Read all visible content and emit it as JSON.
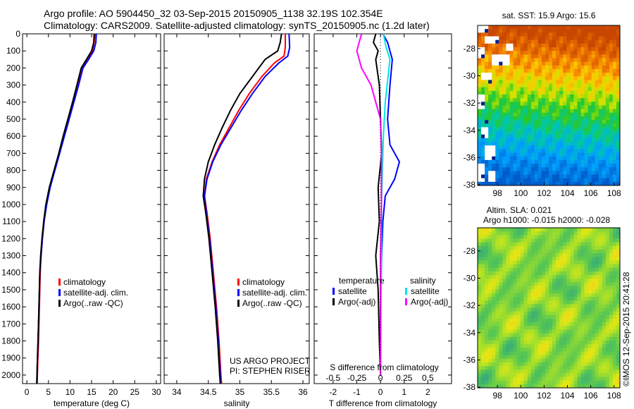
{
  "titles": {
    "line1": "Argo profile: AO 5904450_32 03-Sep-2015 20150905_1138 32.19S 102.354E",
    "line2": "Climatology: CARS2009. Satellite-adjusted climatology: synTS_20150905.nc (1.2d later)"
  },
  "colors": {
    "climatology": "#ff0000",
    "satellite": "#0000ff",
    "argo": "#000000",
    "sat_cyan": "#00e5e5",
    "argo_magenta": "#ff00ff"
  },
  "chart_data": [
    {
      "type": "line",
      "id": "temperature",
      "xlabel": "temperature (deg C)",
      "xlim": [
        -1,
        31
      ],
      "xticks": [
        0,
        5,
        10,
        15,
        20,
        25,
        30
      ],
      "ylim": [
        0,
        2050
      ],
      "yticks": [
        0,
        100,
        200,
        300,
        400,
        500,
        600,
        700,
        800,
        900,
        1000,
        1100,
        1200,
        1300,
        1400,
        1500,
        1600,
        1700,
        1800,
        1900,
        2000
      ],
      "legend": [
        "climatology",
        "satellite-adj. clim.",
        "Argo(..raw -QC)"
      ],
      "series": [
        {
          "name": "climatology",
          "color": "#ff0000",
          "points": [
            [
              15.8,
              0
            ],
            [
              15.6,
              50
            ],
            [
              15.2,
              100
            ],
            [
              14.0,
              150
            ],
            [
              12.8,
              200
            ],
            [
              11.8,
              300
            ],
            [
              10.7,
              400
            ],
            [
              9.6,
              500
            ],
            [
              8.5,
              600
            ],
            [
              7.5,
              700
            ],
            [
              6.4,
              800
            ],
            [
              5.3,
              900
            ],
            [
              4.5,
              1000
            ],
            [
              4.0,
              1100
            ],
            [
              3.6,
              1200
            ],
            [
              3.3,
              1300
            ],
            [
              3.1,
              1400
            ],
            [
              2.9,
              1600
            ],
            [
              2.7,
              1800
            ],
            [
              2.5,
              1950
            ],
            [
              2.4,
              2050
            ]
          ]
        },
        {
          "name": "satellite-adj. clim.",
          "color": "#0000ff",
          "points": [
            [
              16.1,
              0
            ],
            [
              16.0,
              50
            ],
            [
              15.5,
              100
            ],
            [
              14.3,
              150
            ],
            [
              13.0,
              200
            ],
            [
              12.0,
              300
            ],
            [
              10.9,
              400
            ],
            [
              9.8,
              500
            ],
            [
              8.7,
              600
            ],
            [
              7.6,
              700
            ],
            [
              6.5,
              800
            ],
            [
              5.4,
              900
            ],
            [
              4.6,
              1000
            ],
            [
              4.0,
              1100
            ],
            [
              3.6,
              1200
            ],
            [
              3.3,
              1300
            ],
            [
              3.0,
              1400
            ],
            [
              2.8,
              1600
            ],
            [
              2.6,
              1800
            ],
            [
              2.4,
              1950
            ],
            [
              2.3,
              2050
            ]
          ]
        },
        {
          "name": "Argo(..raw -QC)",
          "color": "#000000",
          "points": [
            [
              15.6,
              0
            ],
            [
              15.5,
              50
            ],
            [
              15.0,
              100
            ],
            [
              13.8,
              150
            ],
            [
              12.6,
              200
            ],
            [
              11.6,
              300
            ],
            [
              10.6,
              400
            ],
            [
              9.5,
              500
            ],
            [
              8.4,
              600
            ],
            [
              7.4,
              700
            ],
            [
              6.3,
              800
            ],
            [
              5.2,
              900
            ],
            [
              4.4,
              1000
            ],
            [
              3.9,
              1100
            ],
            [
              3.5,
              1200
            ],
            [
              3.2,
              1300
            ],
            [
              3.0,
              1400
            ],
            [
              2.8,
              1600
            ],
            [
              2.6,
              1800
            ],
            [
              2.4,
              1950
            ],
            [
              2.3,
              2050
            ]
          ]
        }
      ],
      "annotations": []
    },
    {
      "type": "line",
      "id": "salinity",
      "xlabel": "salinity",
      "xlim": [
        33.8,
        36.1
      ],
      "xticks": [
        34,
        34.5,
        35,
        35.5,
        36
      ],
      "ylim": [
        0,
        2050
      ],
      "legend": [
        "climatology",
        "satellite-adj. clim.",
        "Argo(..raw -QC)"
      ],
      "series": [
        {
          "name": "climatology",
          "color": "#ff0000",
          "points": [
            [
              35.72,
              0
            ],
            [
              35.72,
              80
            ],
            [
              35.7,
              130
            ],
            [
              35.55,
              170
            ],
            [
              35.35,
              250
            ],
            [
              35.15,
              350
            ],
            [
              34.98,
              450
            ],
            [
              34.83,
              550
            ],
            [
              34.68,
              650
            ],
            [
              34.56,
              750
            ],
            [
              34.47,
              850
            ],
            [
              34.44,
              950
            ],
            [
              34.48,
              1050
            ],
            [
              34.53,
              1200
            ],
            [
              34.58,
              1400
            ],
            [
              34.63,
              1600
            ],
            [
              34.67,
              1800
            ],
            [
              34.7,
              2000
            ],
            [
              34.71,
              2050
            ]
          ]
        },
        {
          "name": "satellite-adj. clim.",
          "color": "#0000ff",
          "points": [
            [
              35.78,
              0
            ],
            [
              35.79,
              80
            ],
            [
              35.76,
              130
            ],
            [
              35.62,
              170
            ],
            [
              35.4,
              250
            ],
            [
              35.2,
              350
            ],
            [
              35.02,
              450
            ],
            [
              34.86,
              550
            ],
            [
              34.7,
              650
            ],
            [
              34.57,
              750
            ],
            [
              34.48,
              850
            ],
            [
              34.44,
              950
            ],
            [
              34.47,
              1050
            ],
            [
              34.52,
              1200
            ],
            [
              34.57,
              1400
            ],
            [
              34.62,
              1600
            ],
            [
              34.66,
              1800
            ],
            [
              34.69,
              2000
            ],
            [
              34.7,
              2050
            ]
          ]
        },
        {
          "name": "Argo(..raw -QC)",
          "color": "#000000",
          "points": [
            [
              35.66,
              0
            ],
            [
              35.64,
              50
            ],
            [
              35.6,
              100
            ],
            [
              35.4,
              150
            ],
            [
              35.2,
              250
            ],
            [
              35.0,
              350
            ],
            [
              34.85,
              450
            ],
            [
              34.72,
              550
            ],
            [
              34.6,
              650
            ],
            [
              34.5,
              750
            ],
            [
              34.44,
              850
            ],
            [
              34.42,
              950
            ],
            [
              34.46,
              1050
            ],
            [
              34.51,
              1200
            ],
            [
              34.56,
              1400
            ],
            [
              34.61,
              1600
            ],
            [
              34.65,
              1800
            ],
            [
              34.68,
              2000
            ],
            [
              34.69,
              2050
            ]
          ]
        }
      ],
      "annotations": [
        "US ARGO PROJECT",
        "PI: STEPHEN RISER"
      ]
    },
    {
      "type": "line",
      "id": "differences",
      "xlabel": "T difference from climatology",
      "xlim": [
        -2.8,
        3.0
      ],
      "xticks": [
        -2,
        -1,
        0,
        1,
        2
      ],
      "top_axis_label": "S difference from climatology",
      "top_ticks": [
        -0.5,
        -0.25,
        0,
        0.25,
        0.5
      ],
      "ylim": [
        0,
        2050
      ],
      "legend_headers": [
        "temperature",
        "salinity"
      ],
      "legend": [
        "satellite",
        "Argo(-adj)",
        "satellite",
        "Argo(-adj)"
      ],
      "series": [
        {
          "name": "T satellite",
          "color": "#0000ff",
          "points": [
            [
              0.1,
              0
            ],
            [
              0.3,
              50
            ],
            [
              0.5,
              150
            ],
            [
              0.4,
              300
            ],
            [
              0.3,
              500
            ],
            [
              0.4,
              650
            ],
            [
              0.8,
              750
            ],
            [
              0.6,
              850
            ],
            [
              0.2,
              950
            ],
            [
              0.1,
              1100
            ],
            [
              0.05,
              1300
            ],
            [
              0,
              1600
            ],
            [
              0,
              2000
            ]
          ]
        },
        {
          "name": "T Argo(-adj)",
          "color": "#000000",
          "points": [
            [
              -0.2,
              0
            ],
            [
              -0.3,
              50
            ],
            [
              -0.1,
              100
            ],
            [
              -0.2,
              150
            ],
            [
              -0.05,
              300
            ],
            [
              0,
              500
            ],
            [
              0.05,
              700
            ],
            [
              -0.1,
              900
            ],
            [
              -0.05,
              1100
            ],
            [
              -0.2,
              1300
            ],
            [
              -0.1,
              1500
            ],
            [
              -0.05,
              1800
            ],
            [
              0,
              2000
            ]
          ]
        },
        {
          "name": "S satellite",
          "color": "#00e5e5",
          "points": [
            [
              0.03,
              0
            ],
            [
              0.06,
              80
            ],
            [
              0.1,
              150
            ],
            [
              0.08,
              250
            ],
            [
              0.05,
              400
            ],
            [
              0.03,
              600
            ],
            [
              0.02,
              800
            ],
            [
              0.01,
              1000
            ],
            [
              0.01,
              1300
            ],
            [
              0.005,
              1600
            ],
            [
              0,
              2000
            ]
          ]
        },
        {
          "name": "S Argo(-adj)",
          "color": "#ff00ff",
          "points": [
            [
              -0.2,
              0
            ],
            [
              -0.25,
              100
            ],
            [
              -0.2,
              200
            ],
            [
              -0.1,
              300
            ],
            [
              -0.05,
              400
            ],
            [
              0,
              500
            ],
            [
              0.01,
              700
            ],
            [
              0.01,
              1000
            ],
            [
              0,
              1300
            ],
            [
              0,
              1600
            ],
            [
              0,
              2000
            ]
          ]
        }
      ],
      "annotations": []
    },
    {
      "type": "heatmap",
      "id": "sst",
      "title": "sat. SST: 15.9 Argo: 15.6",
      "xticks": [
        98,
        100,
        102,
        104,
        106,
        108
      ],
      "yticks": [
        -28,
        -30,
        -32,
        -34,
        -36,
        -38
      ]
    },
    {
      "type": "heatmap",
      "id": "sla",
      "title_lines": [
        "Altim. SLA: 0.021",
        "Argo h1000: -0.015 h2000: -0.028"
      ],
      "xticks": [
        98,
        100,
        102,
        104,
        106,
        108
      ],
      "yticks": [
        -28,
        -30,
        -32,
        -34,
        -36,
        -38
      ]
    }
  ],
  "watermark": "©IMOS 12-Sep-2015 20:41:28"
}
